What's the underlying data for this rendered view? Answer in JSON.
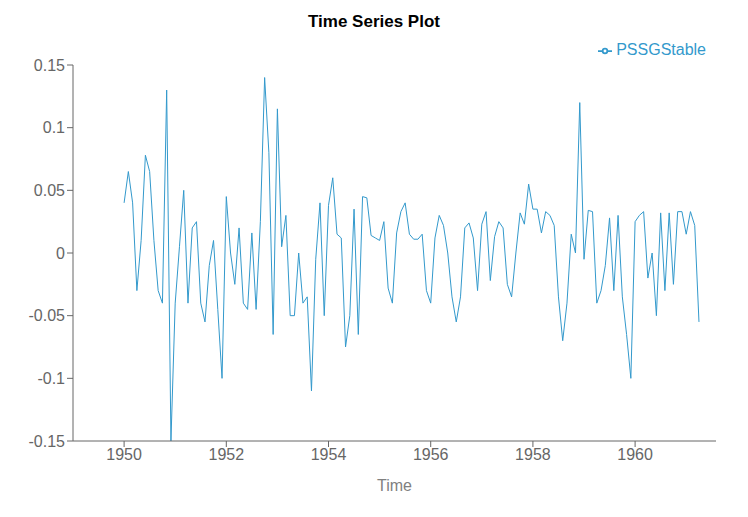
{
  "chart_data": {
    "type": "line",
    "title": "Time Series Plot",
    "xlabel": "Time",
    "x": [
      1950,
      1950.0833,
      1950.1667,
      1950.25,
      1950.3333,
      1950.4167,
      1950.5,
      1950.5833,
      1950.6667,
      1950.75,
      1950.8333,
      1950.9167,
      1951,
      1951.0833,
      1951.1667,
      1951.25,
      1951.3333,
      1951.4167,
      1951.5,
      1951.5833,
      1951.6667,
      1951.75,
      1951.8333,
      1951.9167,
      1952,
      1952.0833,
      1952.1667,
      1952.25,
      1952.3333,
      1952.4167,
      1952.5,
      1952.5833,
      1952.6667,
      1952.75,
      1952.8333,
      1952.9167,
      1953,
      1953.0833,
      1953.1667,
      1953.25,
      1953.3333,
      1953.4167,
      1953.5,
      1953.5833,
      1953.6667,
      1953.75,
      1953.8333,
      1953.9167,
      1954,
      1954.0833,
      1954.1667,
      1954.25,
      1954.3333,
      1954.4167,
      1954.5,
      1954.5833,
      1954.6667,
      1954.75,
      1954.8333,
      1954.9167,
      1955,
      1955.0833,
      1955.1667,
      1955.25,
      1955.3333,
      1955.4167,
      1955.5,
      1955.5833,
      1955.6667,
      1955.75,
      1955.8333,
      1955.9167,
      1956,
      1956.0833,
      1956.1667,
      1956.25,
      1956.3333,
      1956.4167,
      1956.5,
      1956.5833,
      1956.6667,
      1956.75,
      1956.8333,
      1956.9167,
      1957,
      1957.0833,
      1957.1667,
      1957.25,
      1957.3333,
      1957.4167,
      1957.5,
      1957.5833,
      1957.6667,
      1957.75,
      1957.8333,
      1957.9167,
      1958,
      1958.0833,
      1958.1667,
      1958.25,
      1958.3333,
      1958.4167,
      1958.5,
      1958.5833,
      1958.6667,
      1958.75,
      1958.8333,
      1958.9167,
      1959,
      1959.0833,
      1959.1667,
      1959.25,
      1959.3333,
      1959.4167,
      1959.5,
      1959.5833,
      1959.6667,
      1959.75,
      1959.8333,
      1959.9167,
      1960,
      1960.0833,
      1960.1667,
      1960.25,
      1960.3333,
      1960.4167,
      1960.5,
      1960.5833,
      1960.6667,
      1960.75,
      1960.8333,
      1960.9167,
      1961,
      1961.0833,
      1961.1667,
      1961.25
    ],
    "series": [
      {
        "name": "PSSGStable",
        "color": "#3399CC",
        "values": [
          0.04,
          0.065,
          0.04,
          -0.03,
          0.01,
          0.078,
          0.065,
          0.01,
          -0.03,
          -0.04,
          0.13,
          -0.15,
          -0.04,
          0.005,
          0.05,
          -0.04,
          0.02,
          0.025,
          -0.04,
          -0.055,
          -0.01,
          0.01,
          -0.045,
          -0.1,
          0.045,
          0.0,
          -0.025,
          0.02,
          -0.04,
          -0.045,
          0.016,
          -0.045,
          0.025,
          0.14,
          0.08,
          -0.065,
          0.115,
          0.005,
          0.03,
          -0.05,
          -0.05,
          0.0,
          -0.04,
          -0.035,
          -0.11,
          -0.005,
          0.04,
          -0.05,
          0.038,
          0.06,
          0.015,
          0.012,
          -0.075,
          -0.05,
          0.035,
          -0.065,
          0.045,
          0.044,
          0.014,
          0.012,
          0.01,
          0.025,
          -0.028,
          -0.04,
          0.016,
          0.033,
          0.04,
          0.015,
          0.011,
          0.011,
          0.015,
          -0.03,
          -0.04,
          0.012,
          0.03,
          0.022,
          0.0,
          -0.035,
          -0.055,
          -0.035,
          0.02,
          0.024,
          0.012,
          -0.03,
          0.023,
          0.033,
          -0.022,
          0.013,
          0.025,
          0.02,
          -0.025,
          -0.035,
          0.0,
          0.032,
          0.023,
          0.055,
          0.035,
          0.035,
          0.016,
          0.033,
          0.03,
          0.022,
          -0.035,
          -0.07,
          -0.04,
          0.015,
          0.0,
          0.12,
          -0.005,
          0.034,
          0.033,
          -0.04,
          -0.03,
          -0.01,
          0.028,
          -0.03,
          0.03,
          -0.035,
          -0.065,
          -0.1,
          0.025,
          0.03,
          0.033,
          -0.02,
          0.0,
          -0.05,
          0.032,
          -0.03,
          0.032,
          -0.025,
          0.033,
          0.033,
          0.015,
          0.033,
          0.022,
          -0.055
        ]
      }
    ],
    "xlim": [
      1949.0,
      1961.583
    ],
    "ylim": [
      -0.15,
      0.15
    ],
    "xticks": [
      1950,
      1952,
      1954,
      1956,
      1958,
      1960
    ],
    "yticks": [
      -0.15,
      -0.1,
      -0.05,
      0,
      0.05,
      0.1,
      0.15
    ],
    "grid": false,
    "legend": "upper right"
  }
}
